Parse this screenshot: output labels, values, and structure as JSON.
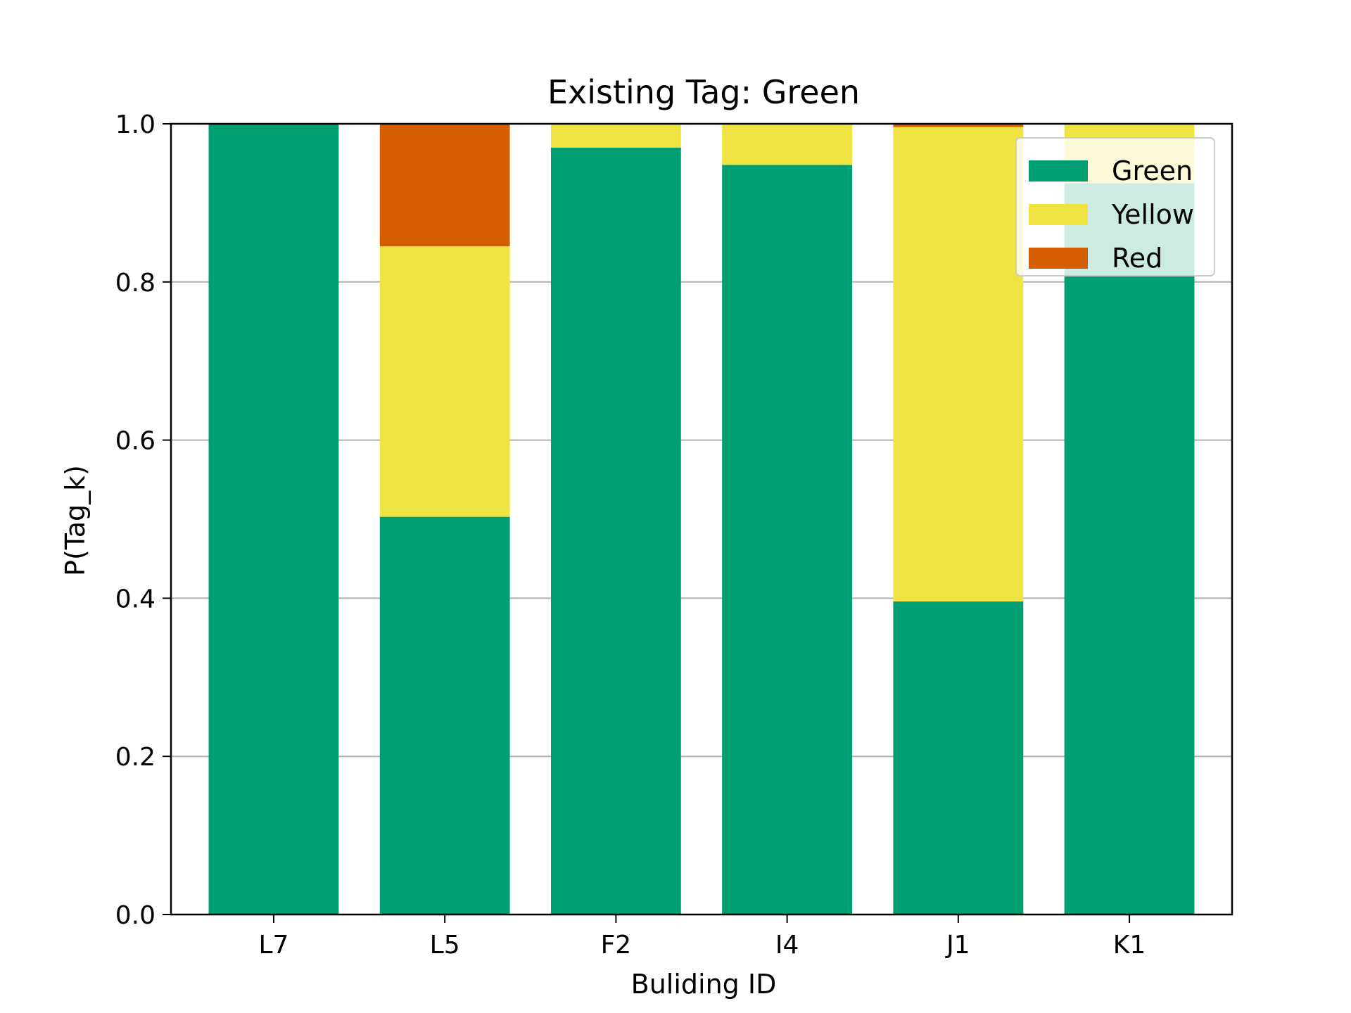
{
  "chart_data": {
    "type": "bar",
    "stacked": true,
    "title": "Existing Tag: Green",
    "xlabel": "Buliding ID",
    "ylabel": "P(Tag_k)",
    "ylim": [
      0,
      1.0
    ],
    "yticks": [
      "0.0",
      "0.2",
      "0.4",
      "0.6",
      "0.8",
      "1.0"
    ],
    "grid": "y",
    "legend_position": "top-right",
    "categories": [
      "L7",
      "L5",
      "F2",
      "I4",
      "J1",
      "K1"
    ],
    "series": [
      {
        "name": "Green",
        "color": "#009E73",
        "values": [
          1.0,
          0.503,
          0.97,
          0.948,
          0.396,
          0.925
        ]
      },
      {
        "name": "Yellow",
        "color": "#F0E442",
        "values": [
          0.0,
          0.342,
          0.03,
          0.052,
          0.6,
          0.075
        ]
      },
      {
        "name": "Red",
        "color": "#D55E00",
        "values": [
          0.0,
          0.155,
          0.0,
          0.0,
          0.004,
          0.0
        ]
      }
    ]
  }
}
